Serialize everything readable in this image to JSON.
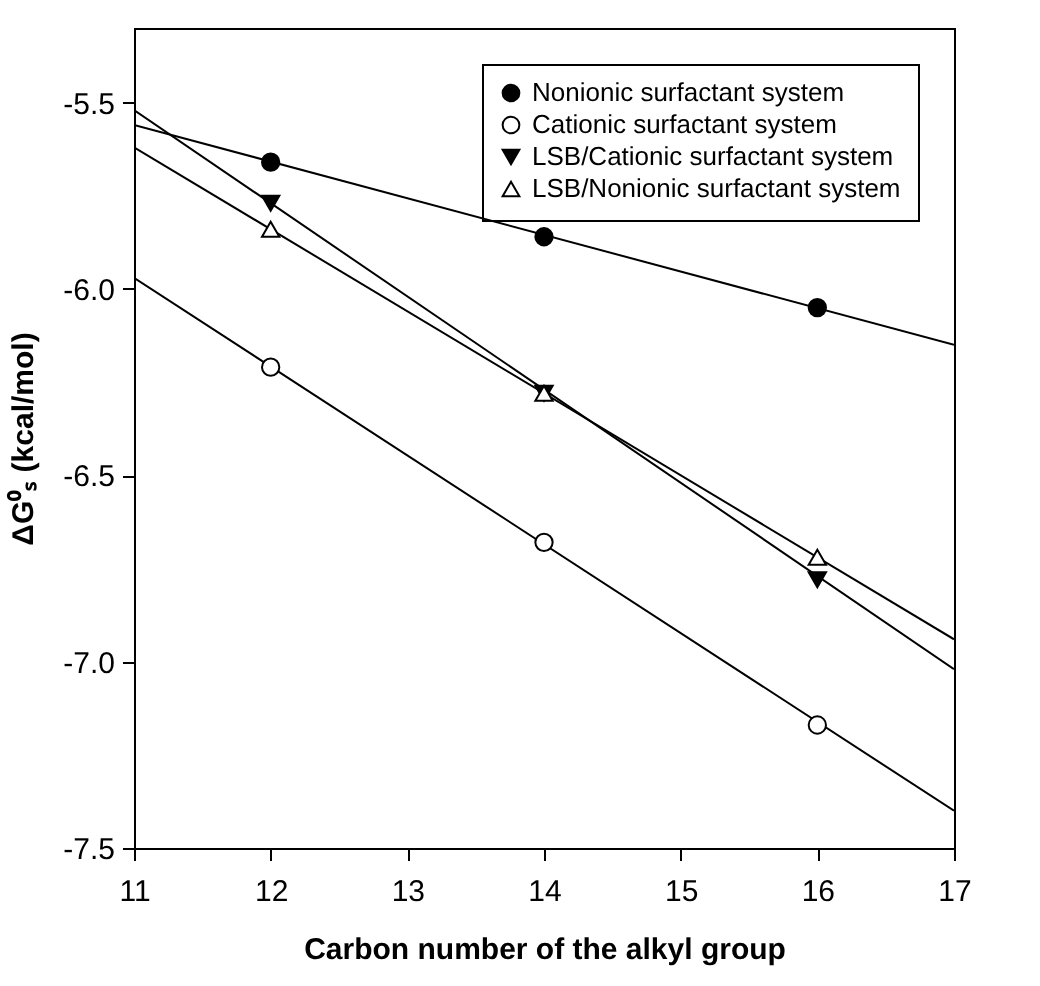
{
  "chart_data": {
    "type": "scatter",
    "xlabel": "Carbon number of the alkyl group",
    "ylabel": "ΔG⁰ₛ (kcal/mol)",
    "xlim": [
      11,
      17
    ],
    "ylim": [
      -7.5,
      -5.3
    ],
    "xticks": [
      11,
      12,
      13,
      14,
      15,
      16,
      17
    ],
    "yticks": [
      -7.5,
      {
        "value": -7,
        "label": "-7.0"
      },
      -6.5,
      {
        "value": -6,
        "label": "-6.0"
      },
      -5.5
    ],
    "grid": false,
    "legend": "top right",
    "series": [
      {
        "name": "Nonionic surfactant system",
        "type": "scatter",
        "marker": "circle",
        "color": "#000000",
        "x": [
          12,
          14,
          16
        ],
        "values": [
          -5.66,
          -5.86,
          -6.05
        ]
      },
      {
        "name": "Cationic surfactant system",
        "type": "scatter",
        "marker": "circle",
        "color": "#ffffff",
        "x": [
          12,
          14,
          16
        ],
        "values": [
          -6.21,
          -6.68,
          -7.17
        ]
      },
      {
        "name": "LSB/Cationic surfactant system",
        "type": "scatter",
        "marker": "triangle-down",
        "color": "#000000",
        "x": [
          12,
          14,
          16
        ],
        "values": [
          -5.77,
          -6.28,
          -6.78
        ]
      },
      {
        "name": "LSB/Nonionic surfactant system",
        "type": "scatter",
        "marker": "triangle",
        "color": "#ffffff",
        "x": [
          12,
          14,
          16
        ],
        "values": [
          -5.84,
          -6.28,
          -6.72
        ]
      },
      {
        "type": "line",
        "color": "#000000",
        "x": [
          11,
          17
        ],
        "values": [
          -5.56,
          -6.15
        ]
      },
      {
        "type": "line",
        "color": "#000000",
        "x": [
          11,
          17
        ],
        "values": [
          -5.97,
          -7.4
        ]
      },
      {
        "type": "line",
        "color": "#000000",
        "x": [
          11,
          17
        ],
        "values": [
          -5.52,
          -7.02
        ]
      },
      {
        "type": "line",
        "color": "#000000",
        "x": [
          11,
          17
        ],
        "values": [
          -5.62,
          -6.94
        ]
      }
    ]
  }
}
